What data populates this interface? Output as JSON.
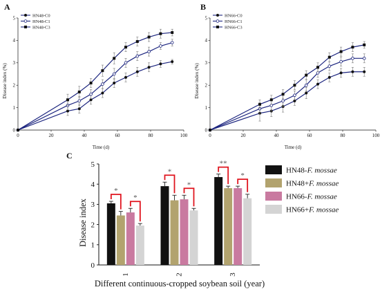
{
  "colors": {
    "line": "#1a237e",
    "bar_series": [
      "#111111",
      "#b2a36e",
      "#c97aa0",
      "#d4d4d4"
    ],
    "bracket": "#e0141e",
    "axis": "#111111"
  },
  "chart_data": [
    {
      "panel": "A",
      "type": "line",
      "xlabel": "Time (d)",
      "ylabel": "Disease index (%)",
      "xlim": [
        0,
        100
      ],
      "ylim": [
        0,
        5
      ],
      "xticks": [
        "0",
        "20",
        "40",
        "60",
        "80",
        "100"
      ],
      "yticks": [
        "0",
        "1",
        "2",
        "3",
        "4",
        "5"
      ],
      "legend_position": "top-left",
      "x": [
        0,
        30,
        37,
        44,
        51,
        58,
        65,
        72,
        79,
        86,
        93
      ],
      "series": [
        {
          "name": "HN48-C0",
          "marker": "filled-circle",
          "values": [
            0,
            0.85,
            0.95,
            1.35,
            1.65,
            2.1,
            2.35,
            2.6,
            2.8,
            2.95,
            3.05
          ],
          "errors": [
            0,
            0.2,
            0.2,
            0.2,
            0.2,
            0.2,
            0.2,
            0.2,
            0.2,
            0.15,
            0.1
          ]
        },
        {
          "name": "HN48-C1",
          "marker": "open-circle",
          "values": [
            0,
            1.1,
            1.3,
            1.6,
            2.05,
            2.5,
            3.0,
            3.3,
            3.5,
            3.75,
            3.9
          ],
          "errors": [
            0,
            0.2,
            0.2,
            0.2,
            0.2,
            0.25,
            0.2,
            0.2,
            0.2,
            0.15,
            0.15
          ]
        },
        {
          "name": "HN48-C3",
          "marker": "filled-square",
          "values": [
            0,
            1.35,
            1.7,
            2.1,
            2.65,
            3.2,
            3.7,
            3.95,
            4.15,
            4.3,
            4.35
          ],
          "errors": [
            0,
            0.25,
            0.25,
            0.2,
            0.25,
            0.25,
            0.2,
            0.2,
            0.2,
            0.2,
            0.15
          ]
        }
      ]
    },
    {
      "panel": "B",
      "type": "line",
      "xlabel": "Time (d)",
      "ylabel": "Disease index (%)",
      "xlim": [
        0,
        100
      ],
      "ylim": [
        0,
        5
      ],
      "xticks": [
        "0",
        "20",
        "40",
        "60",
        "80",
        "100"
      ],
      "yticks": [
        "0",
        "1",
        "2",
        "3",
        "4",
        "5"
      ],
      "legend_position": "top-left",
      "x": [
        0,
        30,
        37,
        44,
        51,
        58,
        65,
        72,
        79,
        86,
        93
      ],
      "series": [
        {
          "name": "HN66-C0",
          "marker": "filled-circle",
          "values": [
            0,
            0.75,
            0.85,
            1.05,
            1.3,
            1.65,
            2.05,
            2.35,
            2.55,
            2.6,
            2.6
          ],
          "errors": [
            0,
            0.35,
            0.25,
            0.25,
            0.2,
            0.25,
            0.2,
            0.2,
            0.2,
            0.2,
            0.2
          ]
        },
        {
          "name": "HN66-C1",
          "marker": "open-circle",
          "values": [
            0,
            0.95,
            1.1,
            1.3,
            1.55,
            2.0,
            2.55,
            2.85,
            3.05,
            3.2,
            3.2
          ],
          "errors": [
            0,
            0.25,
            0.25,
            0.25,
            0.2,
            0.25,
            0.2,
            0.2,
            0.2,
            0.2,
            0.2
          ]
        },
        {
          "name": "HN66-C3",
          "marker": "filled-square",
          "values": [
            0,
            1.15,
            1.35,
            1.6,
            2.0,
            2.45,
            2.8,
            3.25,
            3.5,
            3.7,
            3.8
          ],
          "errors": [
            0,
            0.2,
            0.2,
            0.2,
            0.2,
            0.2,
            0.2,
            0.2,
            0.2,
            0.2,
            0.15
          ]
        }
      ]
    },
    {
      "panel": "C",
      "type": "bar",
      "xlabel": "Different continuous-cropped soybean soil (year)",
      "ylabel": "Disease index",
      "ylim": [
        0,
        5
      ],
      "yticks": [
        "0",
        "1",
        "2",
        "3",
        "4",
        "5"
      ],
      "categories": [
        "1",
        "2",
        "3"
      ],
      "legend_position": "right",
      "series": [
        {
          "name": "HN48-",
          "name_italic": "F. mossae",
          "values": [
            3.05,
            3.9,
            4.35
          ],
          "errors": [
            0.1,
            0.2,
            0.15
          ]
        },
        {
          "name": "HN48+",
          "name_italic": "F. mossae",
          "values": [
            2.45,
            3.2,
            3.8
          ],
          "errors": [
            0.2,
            0.25,
            0.1
          ]
        },
        {
          "name": "HN66-",
          "name_italic": "F. mossae",
          "values": [
            2.6,
            3.25,
            3.8
          ],
          "errors": [
            0.2,
            0.2,
            0.1
          ]
        },
        {
          "name": "HN66+",
          "name_italic": "F. mossae",
          "values": [
            1.95,
            2.7,
            3.3
          ],
          "errors": [
            0.1,
            0.1,
            0.2
          ]
        }
      ],
      "significance": [
        {
          "category": 0,
          "pair": [
            0,
            1
          ],
          "label": "*"
        },
        {
          "category": 0,
          "pair": [
            2,
            3
          ],
          "label": "*"
        },
        {
          "category": 1,
          "pair": [
            0,
            1
          ],
          "label": "*"
        },
        {
          "category": 1,
          "pair": [
            2,
            3
          ],
          "label": "*"
        },
        {
          "category": 2,
          "pair": [
            0,
            1
          ],
          "label": "**"
        },
        {
          "category": 2,
          "pair": [
            2,
            3
          ],
          "label": "*"
        }
      ]
    }
  ]
}
